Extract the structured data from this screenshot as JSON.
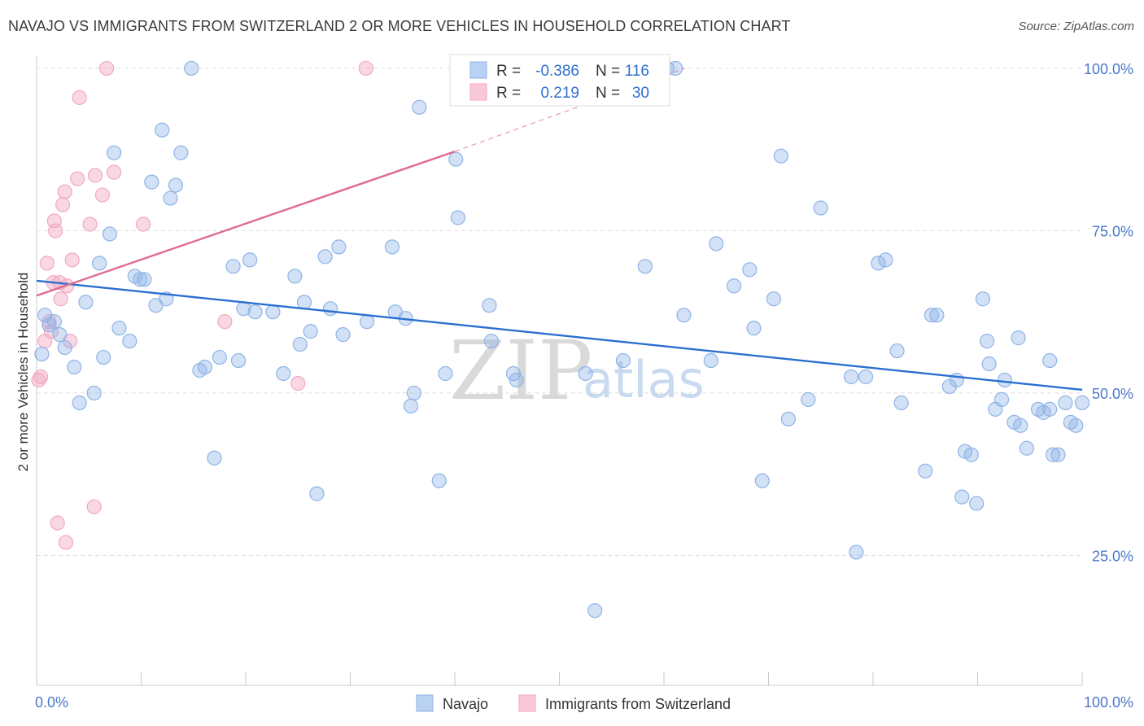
{
  "title": "NAVAJO VS IMMIGRANTS FROM SWITZERLAND 2 OR MORE VEHICLES IN HOUSEHOLD CORRELATION CHART",
  "source": "Source: ZipAtlas.com",
  "watermark": {
    "zip": "ZIP",
    "atlas": "atlas"
  },
  "legend": {
    "r_label": "R =",
    "n_label": "N =",
    "rows": [
      {
        "r": "-0.386",
        "n": "116"
      },
      {
        "r": "0.219",
        "n": "30"
      }
    ]
  },
  "bottom_legend": [
    "Navajo",
    "Immigrants from Switzerland"
  ],
  "chart_data": {
    "type": "scatter",
    "xlabel": "",
    "ylabel": "2 or more Vehicles in Household",
    "xlim": [
      0,
      100
    ],
    "ylim": [
      5,
      102
    ],
    "x_tick_labels": [
      "0.0%",
      "100.0%"
    ],
    "y_ticks": [
      25,
      50,
      75,
      100
    ],
    "y_tick_labels": [
      "25.0%",
      "50.0%",
      "75.0%",
      "100.0%"
    ],
    "grid": true,
    "colors": {
      "navajo": "#8fb4e6",
      "navajo_line": "#2a6fd0",
      "swiss": "#f2a9c0",
      "swiss_line": "#e06a93"
    },
    "series": [
      {
        "name": "Navajo",
        "trend": {
          "x": [
            0,
            100
          ],
          "y": [
            67.3,
            50.5
          ]
        },
        "points": [
          [
            0.5,
            56
          ],
          [
            0.8,
            62
          ],
          [
            1.2,
            60.5
          ],
          [
            1.7,
            61
          ],
          [
            2.2,
            59
          ],
          [
            2.7,
            57
          ],
          [
            3.6,
            54
          ],
          [
            4.1,
            48.5
          ],
          [
            4.7,
            64
          ],
          [
            5.5,
            50
          ],
          [
            6,
            70
          ],
          [
            6.4,
            55.5
          ],
          [
            7,
            74.5
          ],
          [
            7.4,
            87
          ],
          [
            7.9,
            60
          ],
          [
            8.9,
            58
          ],
          [
            9.4,
            68
          ],
          [
            9.9,
            67.5
          ],
          [
            10.3,
            67.5
          ],
          [
            11,
            82.5
          ],
          [
            11.4,
            63.5
          ],
          [
            12,
            90.5
          ],
          [
            12.4,
            64.5
          ],
          [
            12.8,
            80
          ],
          [
            13.3,
            82
          ],
          [
            13.8,
            87
          ],
          [
            14.8,
            100
          ],
          [
            15.6,
            53.5
          ],
          [
            16.1,
            54
          ],
          [
            17,
            40
          ],
          [
            17.5,
            55.5
          ],
          [
            18.8,
            69.5
          ],
          [
            19.3,
            55
          ],
          [
            19.8,
            63
          ],
          [
            20.4,
            70.5
          ],
          [
            20.9,
            62.5
          ],
          [
            22.6,
            62.5
          ],
          [
            23.6,
            53
          ],
          [
            24.7,
            68
          ],
          [
            25.2,
            57.5
          ],
          [
            25.6,
            64
          ],
          [
            26.2,
            59.5
          ],
          [
            26.8,
            34.5
          ],
          [
            27.6,
            71
          ],
          [
            28.1,
            63
          ],
          [
            28.9,
            72.5
          ],
          [
            29.3,
            59
          ],
          [
            31.6,
            61
          ],
          [
            34,
            72.5
          ],
          [
            34.3,
            62.5
          ],
          [
            35.3,
            61.5
          ],
          [
            35.8,
            48
          ],
          [
            36.1,
            50
          ],
          [
            36.6,
            94
          ],
          [
            38.5,
            36.5
          ],
          [
            39.1,
            53
          ],
          [
            40.1,
            86
          ],
          [
            40.3,
            77
          ],
          [
            43.3,
            63.5
          ],
          [
            43.5,
            58
          ],
          [
            45.6,
            53
          ],
          [
            45.9,
            52
          ],
          [
            52.5,
            53
          ],
          [
            53.4,
            16.5
          ],
          [
            56.1,
            55
          ],
          [
            58.2,
            69.5
          ],
          [
            60.3,
            100
          ],
          [
            61.1,
            100
          ],
          [
            61.9,
            62
          ],
          [
            64.5,
            55
          ],
          [
            65,
            73
          ],
          [
            66.7,
            66.5
          ],
          [
            68.2,
            69
          ],
          [
            68.6,
            60
          ],
          [
            69.4,
            36.5
          ],
          [
            70.5,
            64.5
          ],
          [
            71.2,
            86.5
          ],
          [
            71.9,
            46
          ],
          [
            73.8,
            49
          ],
          [
            75,
            78.5
          ],
          [
            77.9,
            52.5
          ],
          [
            78.4,
            25.5
          ],
          [
            79.3,
            52.5
          ],
          [
            80.5,
            70
          ],
          [
            81.2,
            70.5
          ],
          [
            82.3,
            56.5
          ],
          [
            82.7,
            48.5
          ],
          [
            85,
            38
          ],
          [
            85.6,
            62
          ],
          [
            86.1,
            62
          ],
          [
            87.3,
            51
          ],
          [
            88.5,
            34
          ],
          [
            88.8,
            41
          ],
          [
            89.4,
            40.5
          ],
          [
            89.9,
            33
          ],
          [
            90.5,
            64.5
          ],
          [
            90.9,
            58
          ],
          [
            91.1,
            54.5
          ],
          [
            91.7,
            47.5
          ],
          [
            92.3,
            49
          ],
          [
            92.6,
            52
          ],
          [
            93.5,
            45.5
          ],
          [
            93.9,
            58.5
          ],
          [
            94.1,
            45
          ],
          [
            94.7,
            41.5
          ],
          [
            95.8,
            47.5
          ],
          [
            96.3,
            47
          ],
          [
            96.9,
            55
          ],
          [
            97.2,
            40.5
          ],
          [
            97.7,
            40.5
          ],
          [
            98.4,
            48.5
          ],
          [
            98.9,
            45.5
          ],
          [
            99.4,
            45
          ],
          [
            100,
            48.5
          ],
          [
            88,
            52
          ],
          [
            96.9,
            47.5
          ]
        ]
      },
      {
        "name": "Immigrants from Switzerland",
        "trend": {
          "x": [
            0,
            40
          ],
          "y": [
            65,
            87.2
          ]
        },
        "trend_dashed": {
          "x": [
            40,
            62
          ],
          "y": [
            87.2,
            100
          ]
        },
        "points": [
          [
            0.2,
            52
          ],
          [
            0.4,
            52.5
          ],
          [
            0.8,
            58
          ],
          [
            1,
            70
          ],
          [
            1.2,
            61
          ],
          [
            1.4,
            59.5
          ],
          [
            1.6,
            67
          ],
          [
            1.7,
            76.5
          ],
          [
            1.8,
            75
          ],
          [
            2,
            30
          ],
          [
            2.2,
            67
          ],
          [
            2.3,
            64.5
          ],
          [
            2.5,
            79
          ],
          [
            2.7,
            81
          ],
          [
            2.8,
            27
          ],
          [
            2.9,
            66.5
          ],
          [
            3.2,
            58
          ],
          [
            3.4,
            70.5
          ],
          [
            3.9,
            83
          ],
          [
            4.1,
            95.5
          ],
          [
            5.1,
            76
          ],
          [
            5.5,
            32.5
          ],
          [
            5.6,
            83.5
          ],
          [
            6.3,
            80.5
          ],
          [
            6.7,
            100
          ],
          [
            7.4,
            84
          ],
          [
            10.2,
            76
          ],
          [
            18,
            61
          ],
          [
            25,
            51.5
          ],
          [
            31.5,
            100
          ]
        ]
      }
    ]
  }
}
